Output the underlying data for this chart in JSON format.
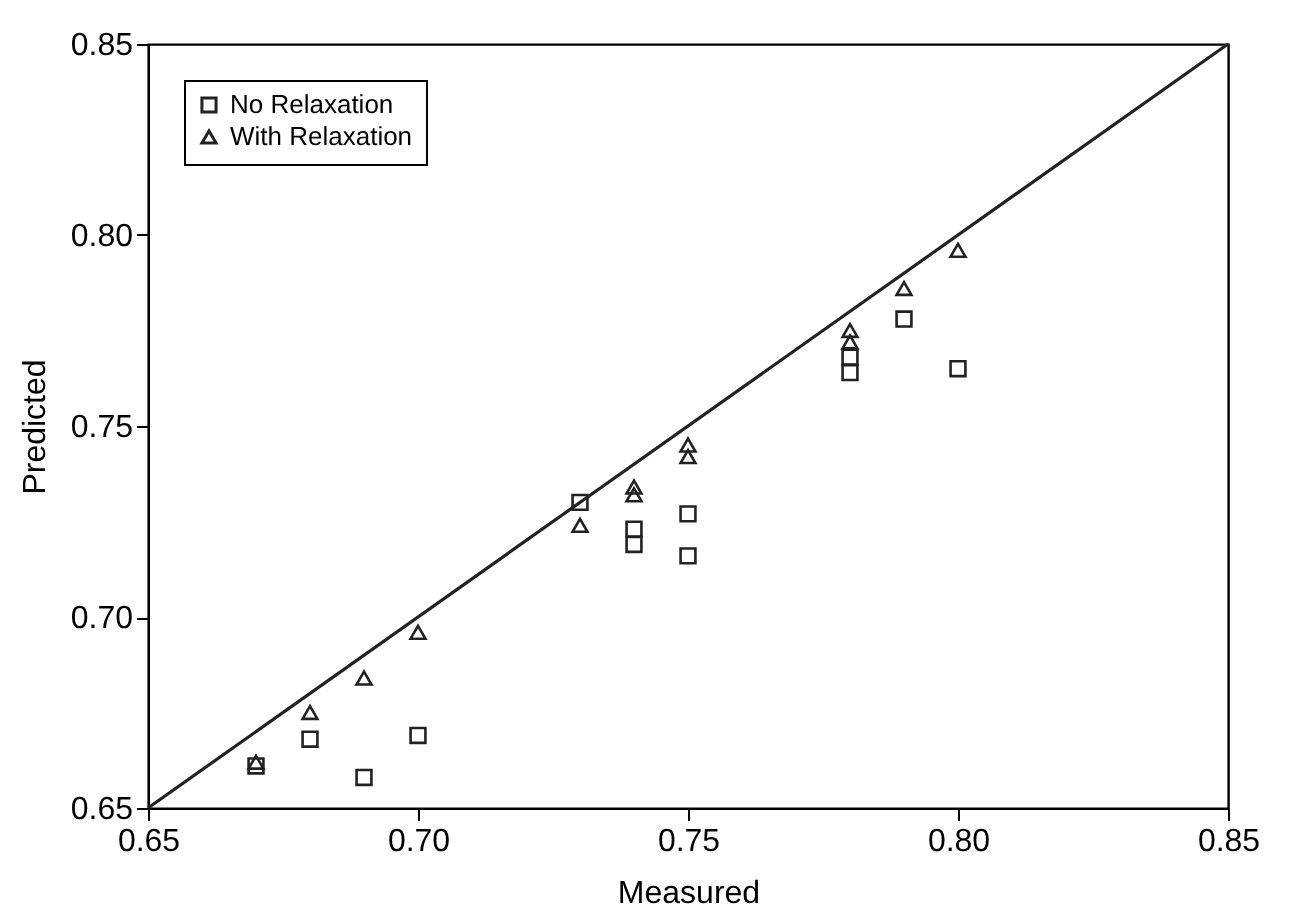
{
  "chart_data": {
    "type": "scatter",
    "xlabel": "Measured",
    "ylabel": "Predicted",
    "xlim": [
      0.65,
      0.85
    ],
    "ylim": [
      0.65,
      0.85
    ],
    "xticks": [
      0.65,
      {
        "value": 0.7,
        "label": "0.70"
      },
      0.75,
      {
        "value": 0.8,
        "label": "0.80"
      },
      0.85
    ],
    "yticks": [
      0.65,
      {
        "value": 0.7,
        "label": "0.70"
      },
      0.75,
      {
        "value": 0.8,
        "label": "0.80"
      },
      0.85
    ],
    "legend": "top left",
    "series": [
      {
        "name": "No Relaxation",
        "color": "#222222",
        "marker": "square",
        "x": [
          0.67,
          0.68,
          0.69,
          0.7,
          0.73,
          0.74,
          0.74,
          0.75,
          0.75,
          0.78,
          0.78,
          0.79,
          0.8
        ],
        "values": [
          0.661,
          0.668,
          0.658,
          0.669,
          0.73,
          0.723,
          0.719,
          0.727,
          0.716,
          0.768,
          0.764,
          0.778,
          0.765
        ]
      },
      {
        "name": "With Relaxation",
        "color": "#222222",
        "marker": "triangle",
        "x": [
          0.67,
          0.68,
          0.69,
          0.7,
          0.73,
          0.74,
          0.74,
          0.75,
          0.75,
          0.78,
          0.78,
          0.79,
          0.8
        ],
        "values": [
          0.662,
          0.675,
          0.684,
          0.696,
          0.724,
          0.734,
          0.732,
          0.745,
          0.742,
          0.775,
          0.772,
          0.786,
          0.796
        ]
      },
      {
        "type": "line",
        "color": "#222222",
        "x": [
          0.65,
          0.85
        ],
        "values": [
          0.65,
          0.85
        ],
        "marker": "none"
      }
    ]
  }
}
